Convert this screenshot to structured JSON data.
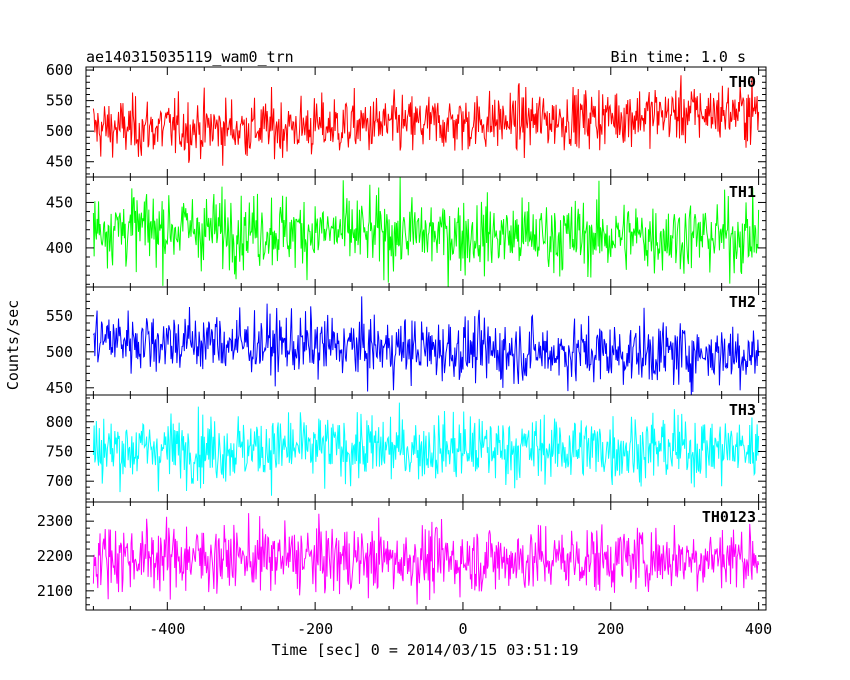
{
  "title_left": "ae140315035119_wam0_trn",
  "title_right": "Bin time: 1.0 s",
  "chart_data": {
    "type": "line",
    "xlabel": "Time [sec] 0 = 2014/03/15 03:51:19",
    "ylabel": "Counts/sec",
    "xlim": [
      -510,
      410
    ],
    "xticks": [
      -400,
      -200,
      0,
      200,
      400
    ],
    "bin_time_s": 1.0,
    "panels": [
      {
        "name": "TH0",
        "color": "#ff0000",
        "ylim": [
          425,
          605
        ],
        "yticks": [
          450,
          500,
          550,
          600
        ],
        "trend": [
          [
            -500,
            505
          ],
          [
            -300,
            505
          ],
          [
            -100,
            510
          ],
          [
            100,
            518
          ],
          [
            300,
            530
          ],
          [
            400,
            532
          ]
        ],
        "sigma": 24,
        "line_width": 1
      },
      {
        "name": "TH1",
        "color": "#00ff00",
        "ylim": [
          357,
          478
        ],
        "yticks": [
          400,
          450
        ],
        "trend": [
          [
            -500,
            423
          ],
          [
            -300,
            420
          ],
          [
            -100,
            416
          ],
          [
            100,
            413
          ],
          [
            300,
            413
          ],
          [
            400,
            413
          ]
        ],
        "sigma": 20,
        "line_width": 1
      },
      {
        "name": "TH2",
        "color": "#0000ff",
        "ylim": [
          440,
          590
        ],
        "yticks": [
          450,
          500,
          550
        ],
        "trend": [
          [
            -500,
            518
          ],
          [
            -300,
            512
          ],
          [
            -100,
            505
          ],
          [
            100,
            500
          ],
          [
            300,
            498
          ],
          [
            400,
            498
          ]
        ],
        "sigma": 22,
        "line_width": 1
      },
      {
        "name": "TH3",
        "color": "#00ffff",
        "ylim": [
          665,
          845
        ],
        "yticks": [
          700,
          750,
          800
        ],
        "trend": [
          [
            -500,
            755
          ],
          [
            -300,
            755
          ],
          [
            -100,
            755
          ],
          [
            100,
            755
          ],
          [
            300,
            755
          ],
          [
            400,
            755
          ]
        ],
        "sigma": 28,
        "line_width": 1
      },
      {
        "name": "TH0123",
        "color": "#ff00ff",
        "ylim": [
          2045,
          2355
        ],
        "yticks": [
          2100,
          2200,
          2300
        ],
        "trend": [
          [
            -500,
            2200
          ],
          [
            -300,
            2195
          ],
          [
            -100,
            2190
          ],
          [
            100,
            2190
          ],
          [
            300,
            2195
          ],
          [
            400,
            2200
          ]
        ],
        "sigma": 48,
        "line_width": 1
      }
    ]
  }
}
